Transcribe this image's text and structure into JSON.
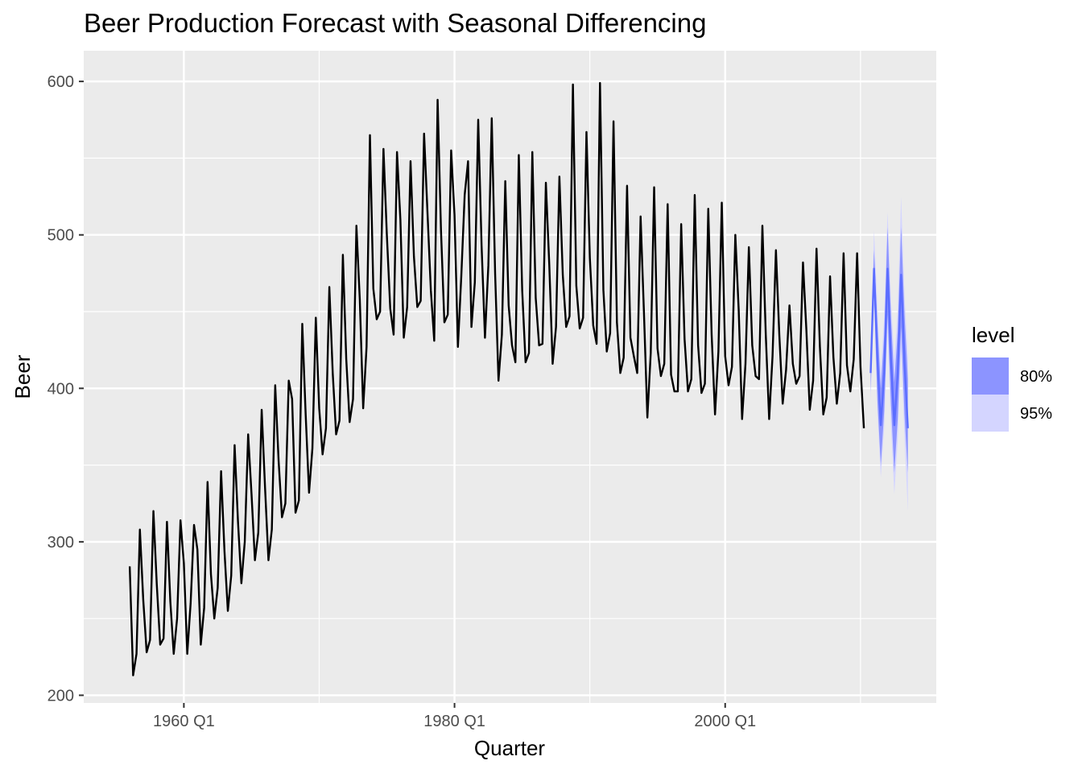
{
  "chart_data": {
    "type": "line",
    "title": "Beer Production Forecast with Seasonal Differencing",
    "xlabel": "Quarter",
    "ylabel": "Beer",
    "x_ticks": [
      {
        "value": 1960,
        "label": "1960 Q1"
      },
      {
        "value": 1980,
        "label": "1980 Q1"
      },
      {
        "value": 2000,
        "label": "2000 Q1"
      }
    ],
    "y_ticks": [
      200,
      300,
      400,
      500,
      600
    ],
    "xlim": [
      1952.6,
      2015.6
    ],
    "ylim": [
      195,
      620
    ],
    "grid": true,
    "colors": {
      "panel_bg": "#ebebeb",
      "grid": "#ffffff",
      "line": "#000000",
      "band80": "#8c94ff",
      "band95": "#d4d5ff",
      "forecast_line": "#5b6dff"
    },
    "series": [
      {
        "start": 1956.0,
        "step": 0.25,
        "values": [
          284,
          213,
          227,
          308,
          262,
          228,
          236,
          320,
          272,
          233,
          237,
          313,
          261,
          227,
          250,
          314,
          286,
          227,
          260,
          311,
          295,
          233,
          257,
          339,
          279,
          250,
          270,
          346,
          294,
          255,
          278,
          363,
          313,
          273,
          300,
          370,
          331,
          288,
          306,
          386,
          335,
          288,
          308,
          402,
          353,
          316,
          325,
          405,
          393,
          319,
          327,
          442,
          383,
          332,
          361,
          446,
          387,
          357,
          374,
          466,
          410,
          370,
          379,
          487,
          419,
          378,
          393,
          506,
          458,
          387,
          427,
          565,
          465,
          445,
          450,
          556,
          500,
          452,
          435,
          554,
          510,
          433,
          453,
          548,
          486,
          453,
          457,
          566,
          515,
          464,
          431,
          588,
          503,
          443,
          448,
          555,
          513,
          427,
          473,
          526,
          548,
          440,
          469,
          575,
          493,
          433,
          480,
          576,
          475,
          405,
          435,
          535,
          454,
          428,
          417,
          552,
          464,
          417,
          423,
          554,
          459,
          428,
          429,
          534,
          481,
          416,
          440,
          538,
          474,
          440,
          447,
          598,
          467,
          439,
          446,
          567,
          485,
          441,
          429,
          599,
          464,
          424,
          436,
          574,
          443,
          410,
          420,
          532,
          433,
          421,
          410,
          512,
          449,
          381,
          423,
          531,
          426,
          408,
          416,
          520,
          409,
          398,
          398,
          507,
          432,
          398,
          406,
          526,
          428,
          397,
          403,
          517,
          435,
          383,
          424,
          521,
          421,
          402,
          414,
          500,
          451,
          380,
          416,
          492,
          428,
          408,
          406,
          506,
          435,
          380,
          421,
          490,
          435,
          390,
          412,
          454,
          416,
          403,
          408,
          482,
          438,
          386,
          405,
          491,
          427,
          383,
          394,
          473,
          420,
          390,
          410,
          488,
          415,
          398,
          419,
          488,
          414,
          374
        ]
      }
    ],
    "forecast": {
      "start": 2010.75,
      "step": 0.25,
      "mean": [
        410,
        478,
        419,
        376,
        410,
        478,
        419,
        376,
        410,
        474,
        417,
        374
      ],
      "lower80": [
        398,
        462,
        392,
        350,
        385,
        448,
        390,
        345,
        380,
        440,
        383,
        345
      ],
      "upper80": [
        422,
        490,
        442,
        400,
        435,
        505,
        446,
        404,
        437,
        505,
        448,
        406
      ],
      "lower95": [
        392,
        455,
        385,
        342,
        374,
        440,
        375,
        331,
        366,
        425,
        368,
        320
      ],
      "upper95": [
        428,
        503,
        453,
        410,
        447,
        515,
        458,
        418,
        451,
        525,
        460,
        420
      ]
    },
    "legend": {
      "title": "level",
      "placement": "right",
      "items": [
        {
          "label": "80%",
          "color": "#8c94ff"
        },
        {
          "label": "95%",
          "color": "#d4d5ff"
        }
      ]
    }
  }
}
